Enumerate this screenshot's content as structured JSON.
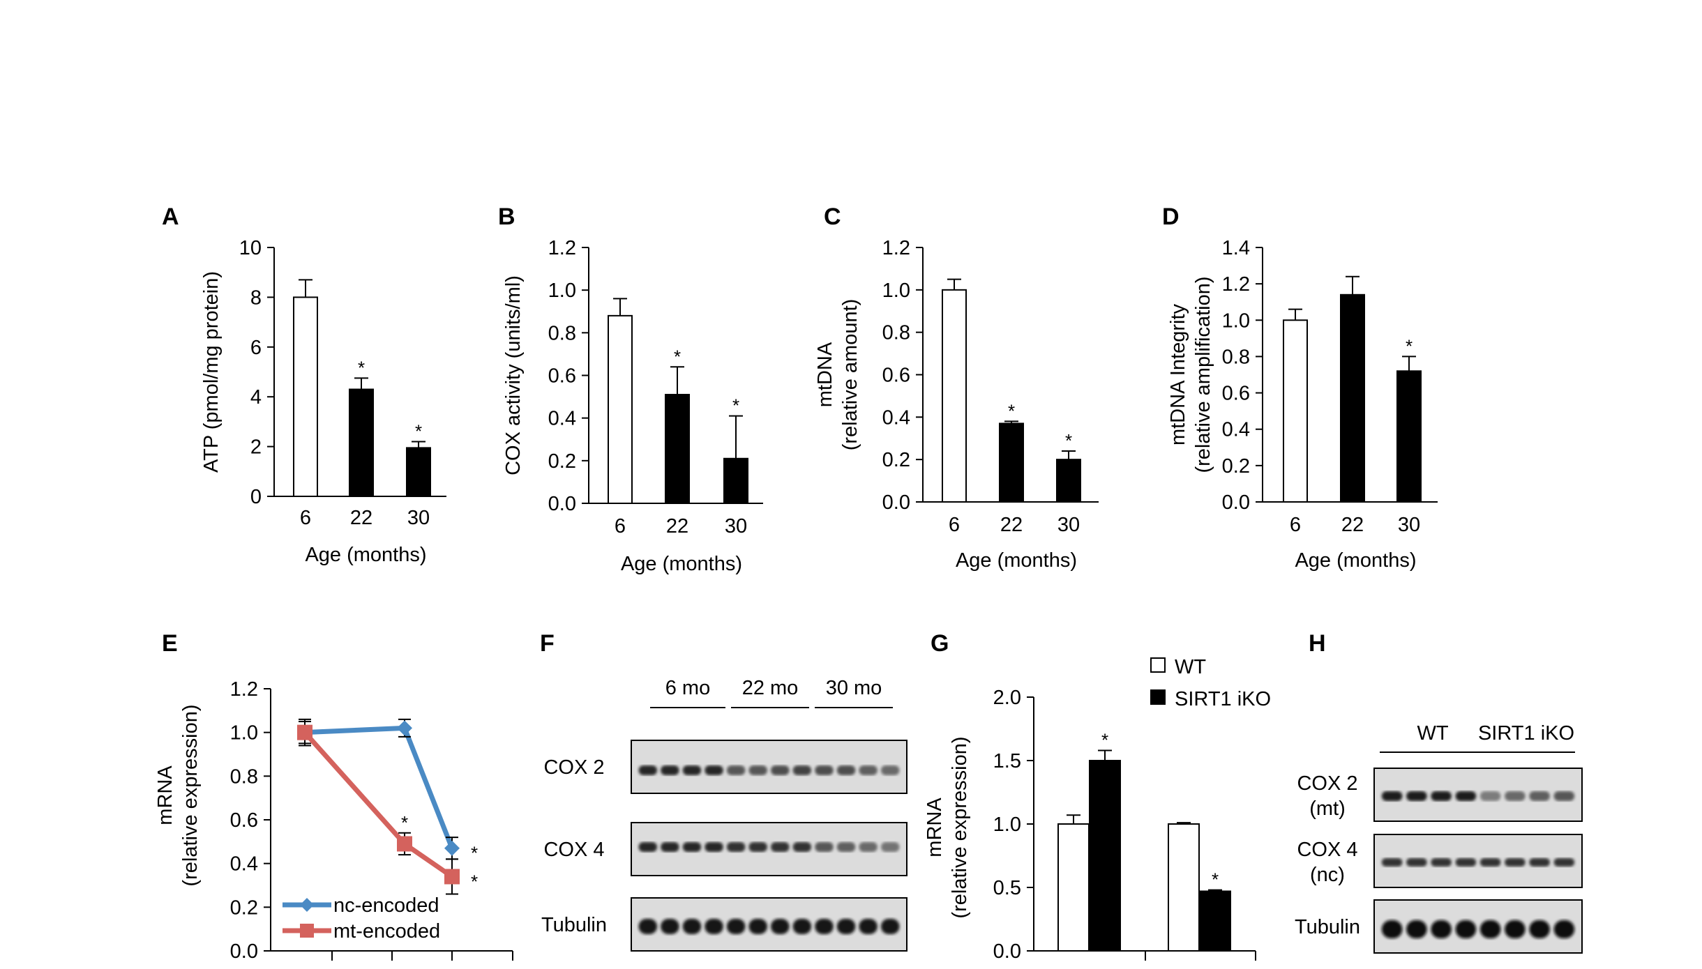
{
  "panels": [
    {
      "label": "A",
      "chart_data": {
        "type": "bar",
        "categories": [
          "6",
          "22",
          "30"
        ],
        "values": [
          8.0,
          4.3,
          1.95
        ],
        "errors": [
          0.7,
          0.45,
          0.25
        ],
        "significant": [
          false,
          true,
          true
        ],
        "fills": [
          "#ffffff",
          "#000000",
          "#000000"
        ],
        "xlabel": "Age (months)",
        "ylabel": [
          "ATP (pmol/mg protein)"
        ],
        "ylim": [
          0,
          10
        ],
        "yticks": [
          "0",
          "2",
          "4",
          "6",
          "8",
          "10"
        ],
        "grid": false
      }
    },
    {
      "label": "B",
      "chart_data": {
        "type": "bar",
        "categories": [
          "6",
          "22",
          "30"
        ],
        "values": [
          0.88,
          0.51,
          0.21
        ],
        "errors": [
          0.08,
          0.13,
          0.2
        ],
        "significant": [
          false,
          true,
          true
        ],
        "fills": [
          "#ffffff",
          "#000000",
          "#000000"
        ],
        "xlabel": "Age (months)",
        "ylabel": [
          "COX activity (units/ml)"
        ],
        "ylim": [
          0,
          1.2
        ],
        "yticks": [
          "0.0",
          "0.2",
          "0.4",
          "0.6",
          "0.8",
          "1.0",
          "1.2"
        ],
        "grid": false
      }
    },
    {
      "label": "C",
      "chart_data": {
        "type": "bar",
        "categories": [
          "6",
          "22",
          "30"
        ],
        "values": [
          1.0,
          0.37,
          0.2
        ],
        "errors": [
          0.05,
          0.01,
          0.04
        ],
        "significant": [
          false,
          true,
          true
        ],
        "fills": [
          "#ffffff",
          "#000000",
          "#000000"
        ],
        "xlabel": "Age (months)",
        "ylabel": [
          "mtDNA",
          "(relative amount)"
        ],
        "ylim": [
          0,
          1.2
        ],
        "yticks": [
          "0.0",
          "0.2",
          "0.4",
          "0.6",
          "0.8",
          "1.0",
          "1.2"
        ],
        "grid": false
      }
    },
    {
      "label": "D",
      "chart_data": {
        "type": "bar",
        "categories": [
          "6",
          "22",
          "30"
        ],
        "values": [
          1.0,
          1.14,
          0.72
        ],
        "errors": [
          0.06,
          0.1,
          0.08
        ],
        "significant": [
          false,
          false,
          true
        ],
        "fills": [
          "#ffffff",
          "#000000",
          "#000000"
        ],
        "xlabel": "Age (months)",
        "ylabel": [
          "mtDNA Integrity",
          "(relative amplification)"
        ],
        "ylim": [
          0,
          1.4
        ],
        "yticks": [
          "0.0",
          "0.2",
          "0.4",
          "0.6",
          "0.8",
          "1.0",
          "1.2",
          "1.4"
        ],
        "grid": false
      }
    },
    {
      "label": "E",
      "chart_data": {
        "type": "line",
        "ylabel": [
          "mRNA",
          "(relative expression)"
        ],
        "ylim": [
          0,
          1.2
        ],
        "yticks": [
          "0.0",
          "0.2",
          "0.4",
          "0.6",
          "0.8",
          "1.0",
          "1.2"
        ],
        "n_points": 3,
        "legend_position": "bottom-left",
        "grid": false,
        "series": [
          {
            "name": "nc-encoded",
            "color": "#4a8ac4",
            "marker": "diamond",
            "values": [
              1.0,
              1.02,
              0.47
            ],
            "errors": [
              0.05,
              0.04,
              0.05
            ],
            "significant": [
              false,
              false,
              true
            ]
          },
          {
            "name": "mt-encoded",
            "color": "#d4625d",
            "marker": "square",
            "values": [
              1.0,
              0.49,
              0.34
            ],
            "errors": [
              0.06,
              0.05,
              0.08
            ],
            "significant": [
              false,
              true,
              true
            ]
          }
        ]
      }
    },
    {
      "label": "F",
      "blot": {
        "groups": [
          "6 mo",
          "22 mo",
          "30 mo"
        ],
        "rows": [
          {
            "label": "COX 2",
            "intensity": [
              0.85,
              0.85,
              0.85,
              0.85,
              0.6,
              0.6,
              0.65,
              0.7,
              0.65,
              0.65,
              0.55,
              0.5
            ]
          },
          {
            "label": "COX 4",
            "intensity": [
              0.85,
              0.85,
              0.85,
              0.85,
              0.8,
              0.8,
              0.8,
              0.8,
              0.6,
              0.55,
              0.5,
              0.45
            ]
          },
          {
            "label": "Tubulin",
            "intensity": [
              0.95,
              0.95,
              0.95,
              0.95,
              0.95,
              0.95,
              0.95,
              0.95,
              0.95,
              0.95,
              0.95,
              0.95
            ]
          }
        ]
      }
    },
    {
      "label": "G",
      "chart_data": {
        "type": "bar",
        "ylabel": [
          "mRNA",
          "(relative expression)"
        ],
        "ylim": [
          0,
          2.0
        ],
        "yticks": [
          "0.0",
          "0.5",
          "1.0",
          "1.5",
          "2.0"
        ],
        "legend_position": "top",
        "grid": false,
        "series": [
          {
            "name": "WT",
            "color": "#ffffff",
            "values": [
              1.0,
              1.0
            ],
            "errors": [
              0.07,
              0.01
            ],
            "significant": [
              false,
              false
            ]
          },
          {
            "name": "SIRT1 iKO",
            "color": "#000000",
            "values": [
              1.5,
              0.47
            ],
            "errors": [
              0.08,
              0.01
            ],
            "significant": [
              true,
              true
            ]
          }
        ]
      }
    },
    {
      "label": "H",
      "blot": {
        "groups": [
          "WT",
          "SIRT1 iKO"
        ],
        "rows": [
          {
            "label": [
              "COX 2",
              "(mt)"
            ],
            "intensity": [
              0.9,
              0.9,
              0.9,
              0.9,
              0.4,
              0.5,
              0.55,
              0.6
            ]
          },
          {
            "label": [
              "COX 4",
              "(nc)"
            ],
            "intensity": [
              0.8,
              0.8,
              0.8,
              0.8,
              0.8,
              0.8,
              0.8,
              0.8
            ]
          },
          {
            "label": "Tubulin",
            "intensity": [
              1.0,
              1.0,
              1.0,
              1.0,
              1.0,
              1.0,
              1.0,
              1.0
            ]
          }
        ]
      }
    }
  ],
  "sig_marker": "*"
}
